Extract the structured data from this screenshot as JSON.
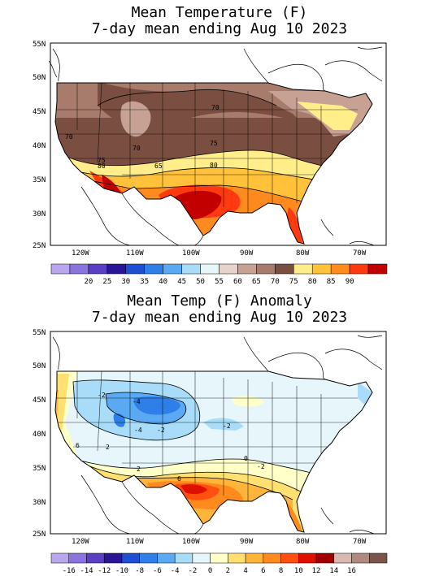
{
  "map1": {
    "title_line1": "Mean Temperature (F)",
    "title_line2": "7-day mean ending Aug 10 2023",
    "lat_labels": [
      "55N",
      "50N",
      "45N",
      "40N",
      "35N",
      "30N",
      "25N"
    ],
    "lon_labels": [
      "120W",
      "110W",
      "100W",
      "90W",
      "80W",
      "70W"
    ],
    "contour_labels": [
      "70",
      "70",
      "70",
      "75",
      "65",
      "80",
      "75",
      "80"
    ],
    "colorbar": {
      "labels": [
        "20",
        "25",
        "30",
        "35",
        "40",
        "45",
        "50",
        "55",
        "60",
        "65",
        "70",
        "75",
        "80",
        "85",
        "90"
      ],
      "colors": [
        "#b9a6ee",
        "#8a74de",
        "#5a3ec4",
        "#2a1596",
        "#1e4fd1",
        "#2e7fe8",
        "#5aa9f2",
        "#a8dcf8",
        "#e6f6fb",
        "#e8d2cc",
        "#c7a294",
        "#a77c6c",
        "#7a4e40",
        "#ffee8a",
        "#ffc23a",
        "#ff8a1e",
        "#ff3a10",
        "#c20000"
      ]
    }
  },
  "map2": {
    "title_line1": "Mean Temp (F) Anomaly",
    "title_line2": "7-day mean ending Aug 10 2023",
    "lat_labels": [
      "55N",
      "50N",
      "45N",
      "40N",
      "35N",
      "30N",
      "25N"
    ],
    "lon_labels": [
      "120W",
      "110W",
      "100W",
      "90W",
      "80W",
      "70W"
    ],
    "contour_labels": [
      "-2",
      "-4",
      "-2",
      "-4",
      "-2",
      "6",
      "2",
      "-2",
      "0",
      "2",
      "6"
    ],
    "colorbar": {
      "labels": [
        "-16",
        "-14",
        "-12",
        "-10",
        "-8",
        "-6",
        "-4",
        "-2",
        "0",
        "2",
        "4",
        "6",
        "8",
        "10",
        "12",
        "14",
        "16"
      ],
      "colors": [
        "#b9a6ee",
        "#8a74de",
        "#5a3ec4",
        "#2a1596",
        "#1e4fd1",
        "#2e7fe8",
        "#5aa9f2",
        "#a8dcf8",
        "#e6f6fb",
        "#ffffc8",
        "#ffe070",
        "#ffb43a",
        "#ff8a1e",
        "#ff5010",
        "#e01000",
        "#a00000",
        "#d8b8b0",
        "#b08a80",
        "#7a5448"
      ]
    }
  }
}
